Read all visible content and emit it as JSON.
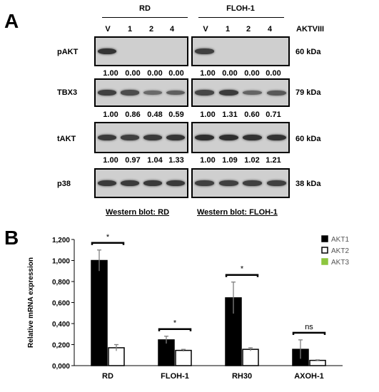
{
  "panel_a": {
    "letter": "A",
    "groups": [
      "RD",
      "FLOH-1"
    ],
    "lanes": [
      "V",
      "1",
      "2",
      "4"
    ],
    "treatment": "AKTVIII",
    "blots": [
      {
        "name": "pAKT",
        "kda": "60 kDa",
        "quant": [
          [
            "1.00",
            "0.00",
            "0.00",
            "0.00"
          ],
          [
            "1.00",
            "0.00",
            "0.00",
            "0.00"
          ]
        ]
      },
      {
        "name": "TBX3",
        "kda": "79 kDa",
        "quant": [
          [
            "1.00",
            "0.86",
            "0.48",
            "0.59"
          ],
          [
            "1.00",
            "1.31",
            "0.60",
            "0.71"
          ]
        ]
      },
      {
        "name": "tAKT",
        "kda": "60 kDa",
        "quant": [
          [
            "1.00",
            "0.97",
            "1.04",
            "1.33"
          ],
          [
            "1.00",
            "1.09",
            "1.02",
            "1.21"
          ]
        ]
      },
      {
        "name": "p38",
        "kda": "38 kDa",
        "quant": []
      }
    ],
    "band_intensity": {
      "pAKT": [
        [
          0.9,
          0,
          0,
          0
        ],
        [
          0.8,
          0,
          0,
          0
        ]
      ],
      "TBX3": [
        [
          0.8,
          0.7,
          0.45,
          0.55
        ],
        [
          0.75,
          0.85,
          0.5,
          0.6
        ]
      ],
      "tAKT": [
        [
          0.85,
          0.8,
          0.85,
          0.9
        ],
        [
          0.95,
          0.95,
          0.92,
          0.92
        ]
      ],
      "p38": [
        [
          0.85,
          0.85,
          0.85,
          0.85
        ],
        [
          0.8,
          0.8,
          0.8,
          0.8
        ]
      ]
    },
    "captions": [
      "Western blot: RD",
      "Western blot: FLOH-1"
    ]
  },
  "panel_b": {
    "letter": "B",
    "chart_data": {
      "type": "bar",
      "categories": [
        "RD",
        "FLOH-1",
        "RH30",
        "AXOH-1"
      ],
      "series": [
        {
          "name": "AKT1",
          "values": [
            1.0,
            0.245,
            0.645,
            0.155
          ],
          "errors": [
            0.1,
            0.035,
            0.15,
            0.09
          ],
          "color": "#000000"
        },
        {
          "name": "AKT2",
          "values": [
            0.17,
            0.145,
            0.155,
            0.05
          ],
          "errors": [
            0.03,
            0.01,
            0.015,
            0.005
          ],
          "color": "#ffffff"
        },
        {
          "name": "AKT3",
          "values": [
            0,
            0,
            0,
            0
          ],
          "errors": [
            0,
            0,
            0,
            0
          ],
          "color": "#8dc63f"
        }
      ],
      "ylabel": "Relative mRNA expression",
      "ylim": [
        0,
        1.2
      ],
      "yticks": [
        "0,000",
        "0,200",
        "0,400",
        "0,600",
        "0,800",
        "1,000",
        "1,200"
      ],
      "significance": [
        "*",
        "*",
        "*",
        "ns"
      ],
      "legend_position": "top-right"
    }
  }
}
